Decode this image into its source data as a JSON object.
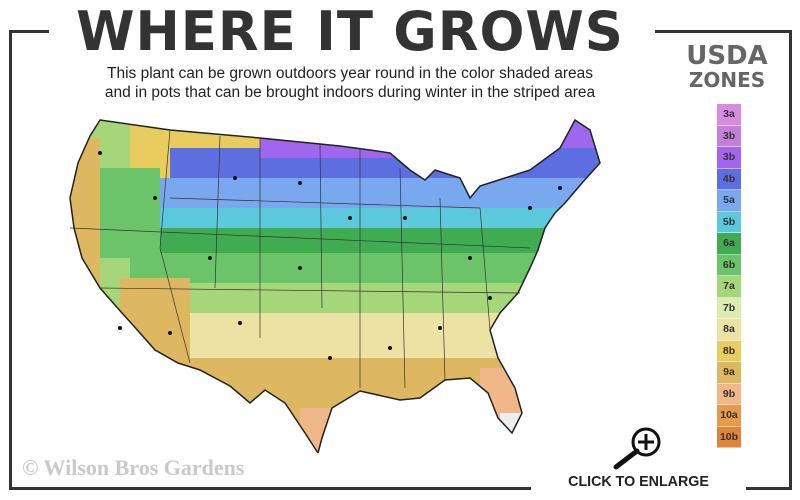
{
  "title": "WHERE IT GROWS",
  "subtitle_line1": "This plant can be grown outdoors year round in the color shaded areas",
  "subtitle_line2": "and in pots that can be brought indoors during winter in the striped area",
  "legend": {
    "title_line1": "USDA",
    "title_line2": "ZONES",
    "zones": [
      {
        "label": "3a",
        "color": "#d98be0"
      },
      {
        "label": "3b",
        "color": "#c27fdc"
      },
      {
        "label": "3b",
        "color": "#a066ee"
      },
      {
        "label": "4b",
        "color": "#5c6ee0"
      },
      {
        "label": "5a",
        "color": "#79a8ee"
      },
      {
        "label": "5b",
        "color": "#5cc8dc"
      },
      {
        "label": "6a",
        "color": "#3fac52"
      },
      {
        "label": "6b",
        "color": "#6cc46a"
      },
      {
        "label": "7a",
        "color": "#a6d67a"
      },
      {
        "label": "7b",
        "color": "#dcebb0"
      },
      {
        "label": "8a",
        "color": "#ece2a4"
      },
      {
        "label": "8b",
        "color": "#e8cc5e"
      },
      {
        "label": "9a",
        "color": "#ddb860"
      },
      {
        "label": "9b",
        "color": "#f0b888"
      },
      {
        "label": "10a",
        "color": "#e89a48"
      },
      {
        "label": "10b",
        "color": "#e0843c"
      }
    ]
  },
  "copyright": "© Wilson Bros Gardens",
  "enlarge": {
    "label": "CLICK TO ENLARGE",
    "icon": "magnifier-plus-icon"
  }
}
